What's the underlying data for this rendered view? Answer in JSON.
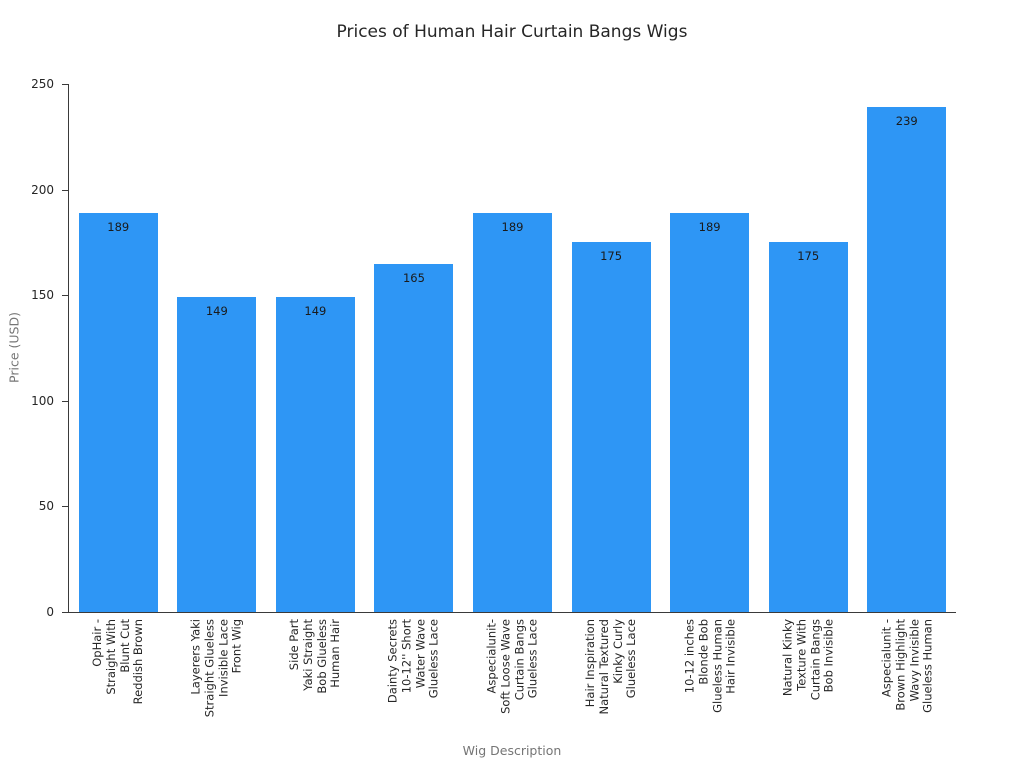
{
  "chart": {
    "title": "Prices of Human Hair Curtain Bangs Wigs",
    "xlabel": "Wig Description",
    "ylabel": "Price (USD)"
  },
  "chart_data": {
    "type": "bar",
    "title": "Prices of Human Hair Curtain Bangs Wigs",
    "xlabel": "Wig Description",
    "ylabel": "Price (USD)",
    "ylim": [
      0,
      250
    ],
    "yticks": [
      0,
      50,
      100,
      150,
      200,
      250
    ],
    "grid": false,
    "legend": false,
    "bar_color": "#2E96F5",
    "value_label_color": "#1a1a1a",
    "categories": [
      "OpHair -\nStraight With\nBlunt Cut\nReddish Brown",
      "Layerers Yaki\nStraight Glueless\nInvisible Lace\nFront Wig",
      "Side Part\nYaki Straight\nBob Glueless\nHuman Hair",
      "Dainty Secrets\n10-12'' Short\nWater Wave\nGlueless Lace",
      "Aspecialunit-\nSoft Loose Wave\nCurtain Bangs\nGlueless Lace",
      "Hair Inspiration\nNatural Textured\nKinky Curly\nGlueless Lace",
      "10-12 inches\nBlonde Bob\nGlueless Human\nHair Invisible",
      "Natural Kinky\nTexture With\nCurtain Bangs\nBob Invisible",
      "Aspecialunit -\nBrown Highlight\nWavy Invisible\nGlueless Human"
    ],
    "values": [
      189,
      149,
      149,
      165,
      189,
      175,
      189,
      175,
      239
    ]
  }
}
